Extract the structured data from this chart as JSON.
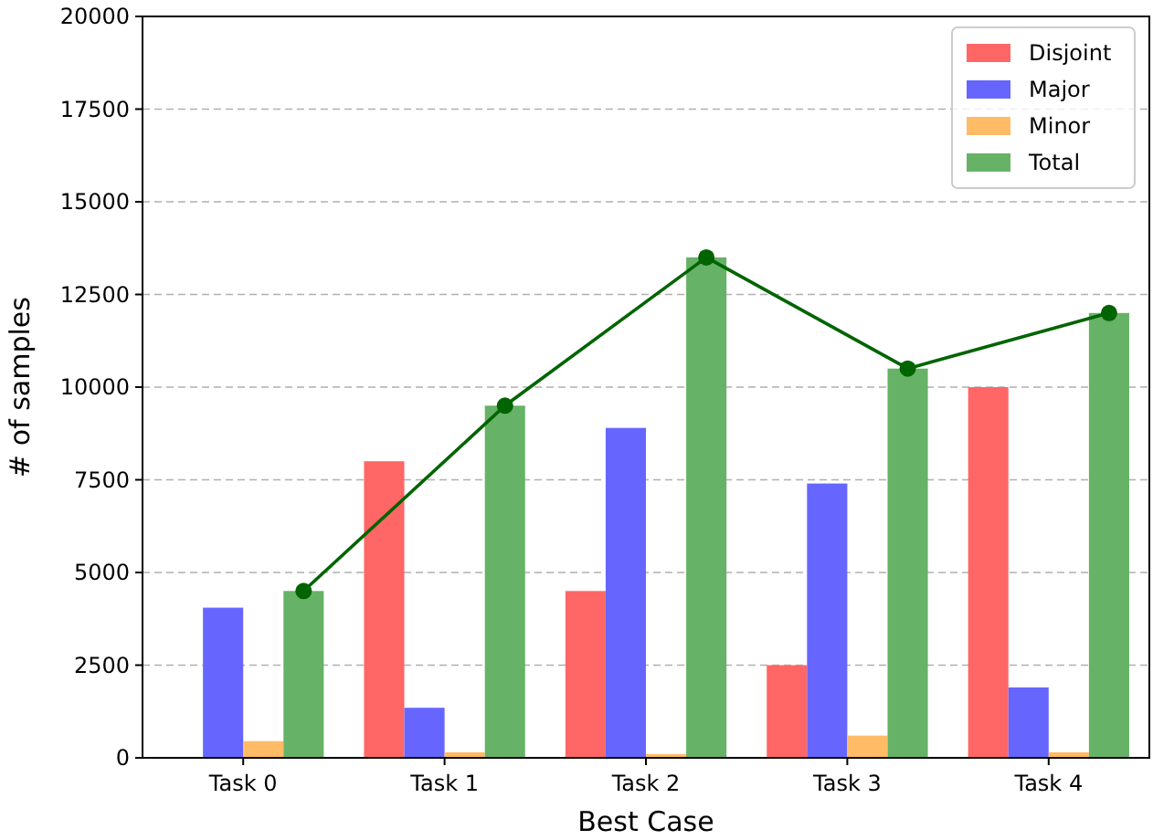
{
  "chart_data": {
    "type": "bar",
    "xlabel": "Best Case",
    "ylabel": "# of samples",
    "categories": [
      "Task 0",
      "Task 1",
      "Task 2",
      "Task 3",
      "Task 4"
    ],
    "series": [
      {
        "name": "Disjoint",
        "color": "#ff6666",
        "values": [
          0,
          8000,
          4500,
          2500,
          10000
        ]
      },
      {
        "name": "Major",
        "color": "#6666ff",
        "values": [
          4050,
          1350,
          8900,
          7400,
          1900
        ]
      },
      {
        "name": "Minor",
        "color": "#ffbb66",
        "values": [
          450,
          150,
          100,
          600,
          150
        ]
      },
      {
        "name": "Total",
        "color": "#66b266",
        "values": [
          4500,
          9500,
          13500,
          10500,
          12000
        ]
      },
      {
        "type": "line",
        "color": "#006400",
        "values": [
          4500,
          9500,
          13500,
          10500,
          12000
        ],
        "marker": "circle"
      }
    ],
    "ylim": [
      0,
      20000
    ],
    "yticks": [
      0,
      2500,
      5000,
      7500,
      10000,
      12500,
      15000,
      17500,
      20000
    ],
    "grid": "y",
    "legend": "top right"
  }
}
